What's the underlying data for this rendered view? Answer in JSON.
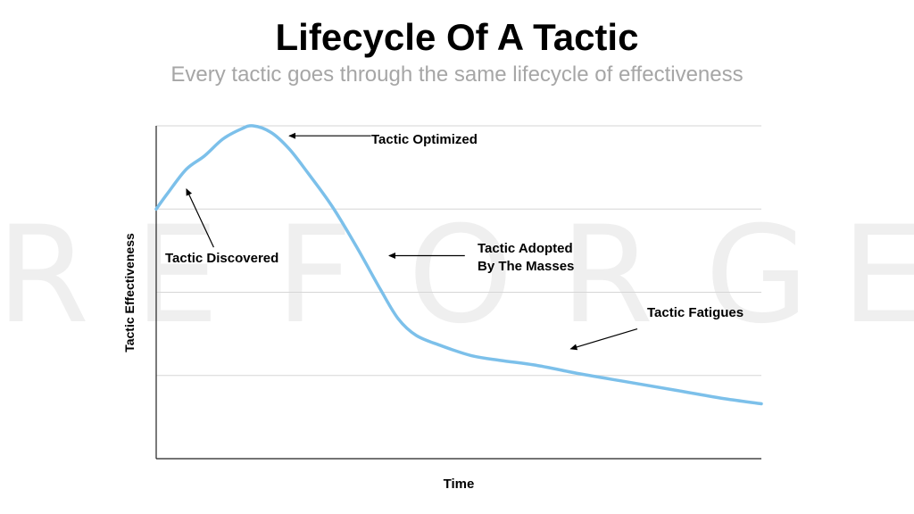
{
  "header": {
    "title": "Lifecycle Of A Tactic",
    "subtitle": "Every tactic goes through the same lifecycle of effectiveness"
  },
  "watermark": {
    "letters": [
      "R",
      "E",
      "F",
      "O",
      "R",
      "G",
      "E"
    ],
    "color": "#efefef"
  },
  "colors": {
    "curve": "#7cc0ea",
    "axis": "#222222",
    "grid": "#d6d6d6",
    "annotation": "#000000"
  },
  "chart_data": {
    "type": "line",
    "title": "Lifecycle Of A Tactic",
    "xlabel": "Time",
    "ylabel": "Tactic Effectiveness",
    "xlim": [
      0,
      100
    ],
    "ylim": [
      0,
      100
    ],
    "grid": true,
    "y_gridlines": [
      25,
      50,
      75,
      100
    ],
    "series": [
      {
        "values": [
          [
            0,
            75
          ],
          [
            2,
            80
          ],
          [
            5,
            87
          ],
          [
            8,
            91
          ],
          [
            11,
            96
          ],
          [
            14,
            99
          ],
          [
            16,
            100
          ],
          [
            19,
            98
          ],
          [
            22,
            93
          ],
          [
            25,
            86
          ],
          [
            29,
            76
          ],
          [
            33,
            64
          ],
          [
            37,
            51
          ],
          [
            40,
            42
          ],
          [
            43,
            37
          ],
          [
            47,
            34
          ],
          [
            52,
            31
          ],
          [
            57,
            29.5
          ],
          [
            63,
            28
          ],
          [
            70,
            25.5
          ],
          [
            78,
            23
          ],
          [
            86,
            20.5
          ],
          [
            94,
            18
          ],
          [
            100,
            16.5
          ]
        ]
      }
    ],
    "annotations": [
      {
        "text": "Tactic Optimized",
        "from": [
          35.5,
          97
        ],
        "to": [
          22,
          97
        ]
      },
      {
        "text": "Tactic Discovered",
        "from": [
          9.5,
          63.5
        ],
        "to": [
          5,
          81
        ]
      },
      {
        "text": "Tactic Adopted By The Masses",
        "lines": [
          "Tactic Adopted",
          "By The Masses"
        ],
        "from": [
          51,
          61
        ],
        "to": [
          38.5,
          61
        ]
      },
      {
        "text": "Tactic Fatigues",
        "from": [
          79.5,
          39
        ],
        "to": [
          68.5,
          33
        ]
      }
    ]
  }
}
